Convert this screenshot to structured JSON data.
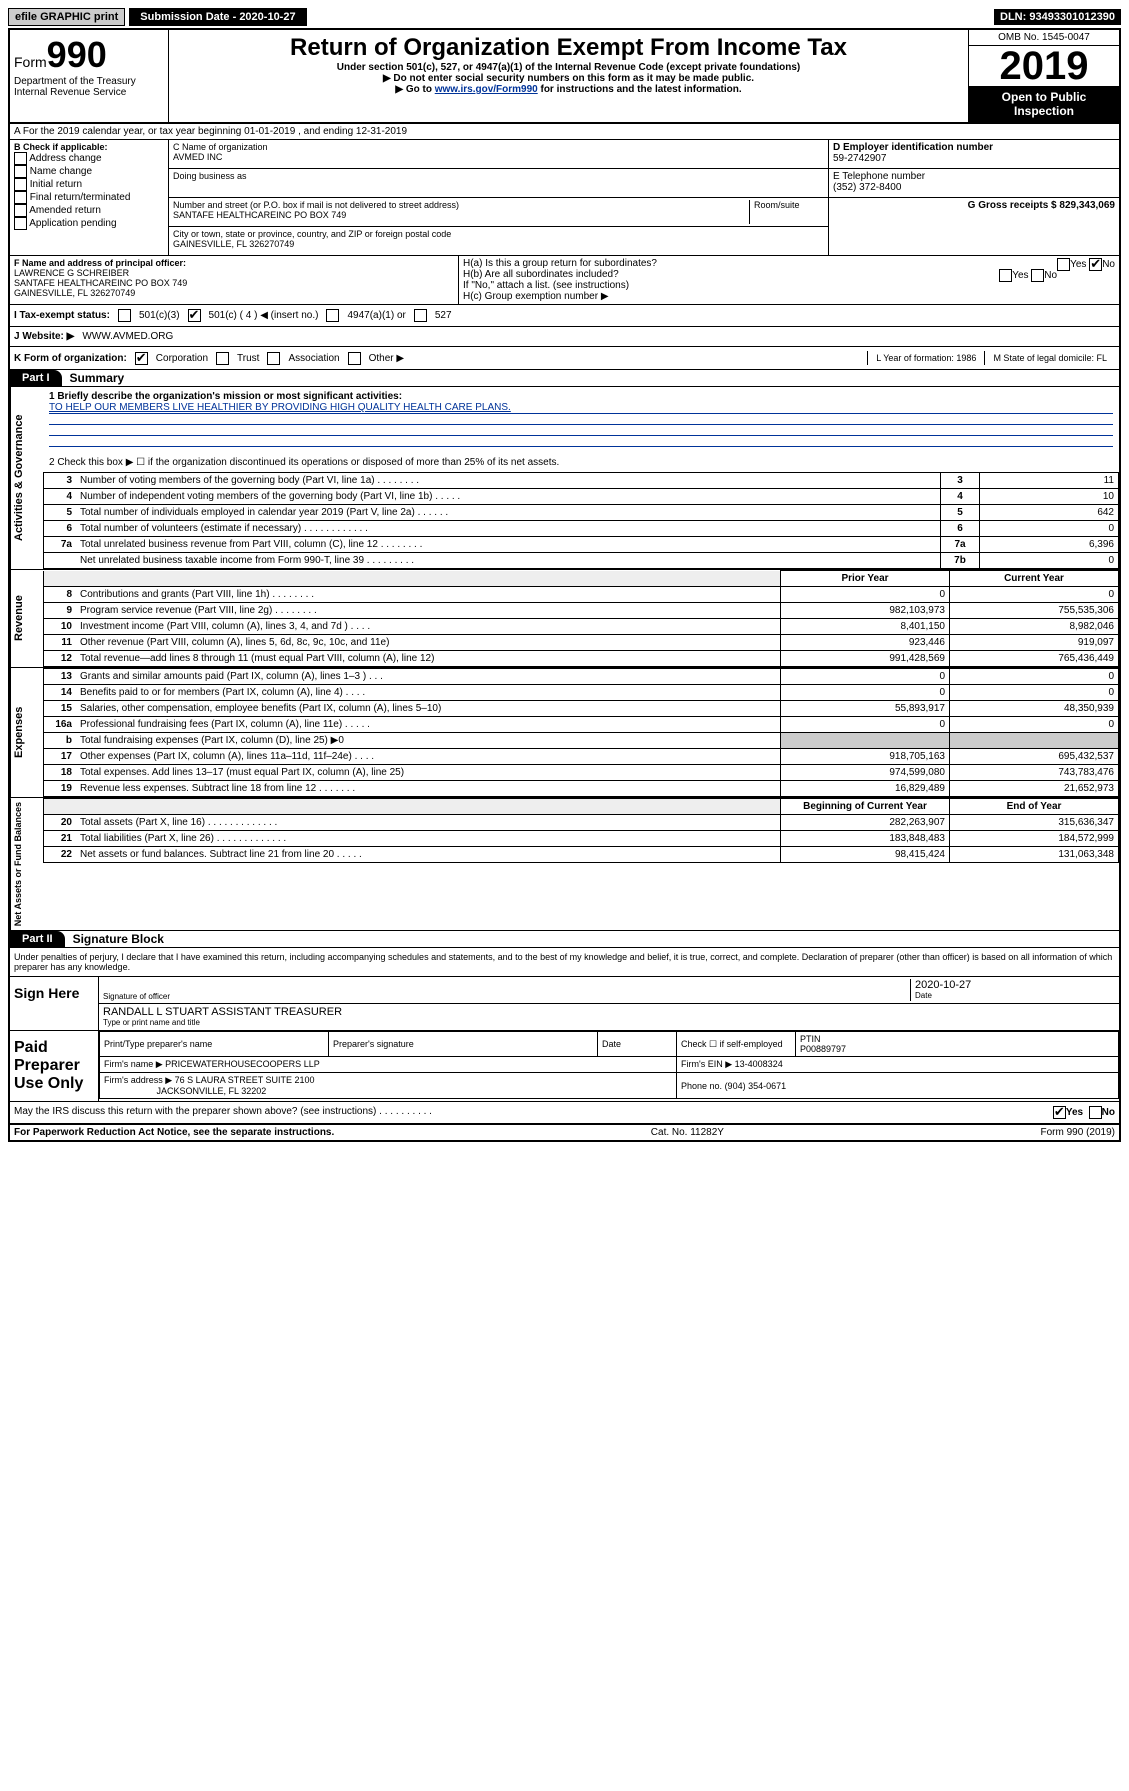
{
  "topbar": {
    "efile_label": "efile GRAPHIC print",
    "submission_label": "Submission Date - 2020-10-27",
    "dln": "DLN: 93493301012390"
  },
  "header": {
    "form_prefix": "Form",
    "form_number": "990",
    "dept": "Department of the Treasury",
    "irs": "Internal Revenue Service",
    "title": "Return of Organization Exempt From Income Tax",
    "subtitle": "Under section 501(c), 527, or 4947(a)(1) of the Internal Revenue Code (except private foundations)",
    "note1": "▶ Do not enter social security numbers on this form as it may be made public.",
    "note2_prefix": "▶ Go to ",
    "note2_link": "www.irs.gov/Form990",
    "note2_suffix": " for instructions and the latest information.",
    "omb": "OMB No. 1545-0047",
    "year": "2019",
    "inspect": "Open to Public Inspection"
  },
  "row_a": "A For the 2019 calendar year, or tax year beginning 01-01-2019   , and ending 12-31-2019",
  "col_b": {
    "label": "B Check if applicable:",
    "opts": [
      "Address change",
      "Name change",
      "Initial return",
      "Final return/terminated",
      "Amended return",
      "Application pending"
    ]
  },
  "col_c": {
    "name_label": "C Name of organization",
    "name": "AVMED INC",
    "dba_label": "Doing business as",
    "addr_label": "Number and street (or P.O. box if mail is not delivered to street address)",
    "room_label": "Room/suite",
    "addr": "SANTAFE HEALTHCAREINC PO BOX 749",
    "city_label": "City or town, state or province, country, and ZIP or foreign postal code",
    "city": "GAINESVILLE, FL  326270749"
  },
  "col_d": {
    "ein_label": "D Employer identification number",
    "ein": "59-2742907",
    "phone_label": "E Telephone number",
    "phone": "(352) 372-8400",
    "gross_label": "G Gross receipts $ 829,343,069"
  },
  "section_f": {
    "label": "F  Name and address of principal officer:",
    "name": "LAWRENCE G SCHREIBER",
    "addr1": "SANTAFE HEALTHCAREINC PO BOX 749",
    "addr2": "GAINESVILLE, FL  326270749"
  },
  "section_h": {
    "ha": "H(a)  Is this a group return for subordinates?",
    "ha_yes": "Yes",
    "ha_no": "No",
    "hb": "H(b)  Are all subordinates included?",
    "hb_yes": "Yes",
    "hb_no": "No",
    "hb_note": "If \"No,\" attach a list. (see instructions)",
    "hc": "H(c)  Group exemption number ▶"
  },
  "tax_status": {
    "label": "I   Tax-exempt status:",
    "c3": "501(c)(3)",
    "c": "501(c) ( 4 ) ◀ (insert no.)",
    "a1": "4947(a)(1) or",
    "527": "527"
  },
  "website": {
    "label": "J   Website: ▶",
    "value": "WWW.AVMED.ORG"
  },
  "k_row": {
    "label": "K Form of organization:",
    "corp": "Corporation",
    "trust": "Trust",
    "assoc": "Association",
    "other": "Other ▶",
    "l": "L Year of formation: 1986",
    "m": "M State of legal domicile: FL"
  },
  "part1": {
    "tab": "Part I",
    "title": "Summary"
  },
  "governance": {
    "vert": "Activities & Governance",
    "line1_label": "1  Briefly describe the organization's mission or most significant activities:",
    "line1_text": "TO HELP OUR MEMBERS LIVE HEALTHIER BY PROVIDING HIGH QUALITY HEALTH CARE PLANS.",
    "line2": "2   Check this box ▶ ☐  if the organization discontinued its operations or disposed of more than 25% of its net assets.",
    "rows": [
      {
        "n": "3",
        "desc": "Number of voting members of the governing body (Part VI, line 1a)   .    .    .    .    .    .    .    .",
        "box": "3",
        "val": "11"
      },
      {
        "n": "4",
        "desc": "Number of independent voting members of the governing body (Part VI, line 1b)   .    .    .    .    .",
        "box": "4",
        "val": "10"
      },
      {
        "n": "5",
        "desc": "Total number of individuals employed in calendar year 2019 (Part V, line 2a)   .    .    .    .    .    .",
        "box": "5",
        "val": "642"
      },
      {
        "n": "6",
        "desc": "Total number of volunteers (estimate if necessary)   .    .    .    .    .    .    .    .    .    .    .    .",
        "box": "6",
        "val": "0"
      },
      {
        "n": "7a",
        "desc": "Total unrelated business revenue from Part VIII, column (C), line 12   .    .    .    .    .    .    .    .",
        "box": "7a",
        "val": "6,396"
      },
      {
        "n": "",
        "desc": "Net unrelated business taxable income from Form 990-T, line 39   .    .    .    .    .    .    .    .    .",
        "box": "7b",
        "val": "0"
      }
    ]
  },
  "revenue": {
    "vert": "Revenue",
    "hdr_prior": "Prior Year",
    "hdr_current": "Current Year",
    "rows": [
      {
        "n": "8",
        "desc": "Contributions and grants (Part VIII, line 1h)   .    .    .    .    .    .    .    .",
        "prior": "0",
        "curr": "0"
      },
      {
        "n": "9",
        "desc": "Program service revenue (Part VIII, line 2g)   .    .    .    .    .    .    .    .",
        "prior": "982,103,973",
        "curr": "755,535,306"
      },
      {
        "n": "10",
        "desc": "Investment income (Part VIII, column (A), lines 3, 4, and 7d )   .    .    .    .",
        "prior": "8,401,150",
        "curr": "8,982,046"
      },
      {
        "n": "11",
        "desc": "Other revenue (Part VIII, column (A), lines 5, 6d, 8c, 9c, 10c, and 11e)",
        "prior": "923,446",
        "curr": "919,097"
      },
      {
        "n": "12",
        "desc": "Total revenue—add lines 8 through 11 (must equal Part VIII, column (A), line 12)",
        "prior": "991,428,569",
        "curr": "765,436,449"
      }
    ]
  },
  "expenses": {
    "vert": "Expenses",
    "rows": [
      {
        "n": "13",
        "desc": "Grants and similar amounts paid (Part IX, column (A), lines 1–3 )   .    .    .",
        "prior": "0",
        "curr": "0"
      },
      {
        "n": "14",
        "desc": "Benefits paid to or for members (Part IX, column (A), line 4)   .    .    .    .",
        "prior": "0",
        "curr": "0"
      },
      {
        "n": "15",
        "desc": "Salaries, other compensation, employee benefits (Part IX, column (A), lines 5–10)",
        "prior": "55,893,917",
        "curr": "48,350,939"
      },
      {
        "n": "16a",
        "desc": "Professional fundraising fees (Part IX, column (A), line 11e)   .    .    .    .    .",
        "prior": "0",
        "curr": "0"
      },
      {
        "n": "b",
        "desc": "Total fundraising expenses (Part IX, column (D), line 25) ▶0",
        "prior": "",
        "curr": "",
        "shade": true
      },
      {
        "n": "17",
        "desc": "Other expenses (Part IX, column (A), lines 11a–11d, 11f–24e)   .    .    .    .",
        "prior": "918,705,163",
        "curr": "695,432,537"
      },
      {
        "n": "18",
        "desc": "Total expenses. Add lines 13–17 (must equal Part IX, column (A), line 25)",
        "prior": "974,599,080",
        "curr": "743,783,476"
      },
      {
        "n": "19",
        "desc": "Revenue less expenses. Subtract line 18 from line 12   .    .    .    .    .    .    .",
        "prior": "16,829,489",
        "curr": "21,652,973"
      }
    ]
  },
  "netassets": {
    "vert": "Net Assets or Fund Balances",
    "hdr_begin": "Beginning of Current Year",
    "hdr_end": "End of Year",
    "rows": [
      {
        "n": "20",
        "desc": "Total assets (Part X, line 16)   .    .    .    .    .    .    .    .    .    .    .    .    .",
        "prior": "282,263,907",
        "curr": "315,636,347"
      },
      {
        "n": "21",
        "desc": "Total liabilities (Part X, line 26)   .    .    .    .    .    .    .    .    .    .    .    .    .",
        "prior": "183,848,483",
        "curr": "184,572,999"
      },
      {
        "n": "22",
        "desc": "Net assets or fund balances. Subtract line 21 from line 20   .    .    .    .    .",
        "prior": "98,415,424",
        "curr": "131,063,348"
      }
    ]
  },
  "part2": {
    "tab": "Part II",
    "title": "Signature Block",
    "declaration": "Under penalties of perjury, I declare that I have examined this return, including accompanying schedules and statements, and to the best of my knowledge and belief, it is true, correct, and complete. Declaration of preparer (other than officer) is based on all information of which preparer has any knowledge."
  },
  "sign": {
    "label": "Sign Here",
    "sig_officer": "Signature of officer",
    "date": "2020-10-27",
    "date_label": "Date",
    "name": "RANDALL L STUART  ASSISTANT TREASURER",
    "name_label": "Type or print name and title"
  },
  "paid": {
    "label": "Paid Preparer Use Only",
    "prep_name_label": "Print/Type preparer's name",
    "prep_sig_label": "Preparer's signature",
    "prep_date_label": "Date",
    "prep_check": "Check ☐ if self-employed",
    "ptin_label": "PTIN",
    "ptin": "P00889797",
    "firm_name_label": "Firm's name    ▶",
    "firm_name": "PRICEWATERHOUSECOOPERS LLP",
    "firm_ein_label": "Firm's EIN ▶",
    "firm_ein": "13-4008324",
    "firm_addr_label": "Firm's address ▶",
    "firm_addr1": "76 S LAURA STREET SUITE 2100",
    "firm_addr2": "JACKSONVILLE, FL  32202",
    "phone_label": "Phone no.",
    "phone": "(904) 354-0671"
  },
  "discuss": {
    "text": "May the IRS discuss this return with the preparer shown above? (see instructions)   .    .    .    .    .    .    .    .    .    .",
    "yes": "Yes",
    "no": "No"
  },
  "footer": {
    "left": "For Paperwork Reduction Act Notice, see the separate instructions.",
    "mid": "Cat. No. 11282Y",
    "right": "Form 990 (2019)"
  }
}
